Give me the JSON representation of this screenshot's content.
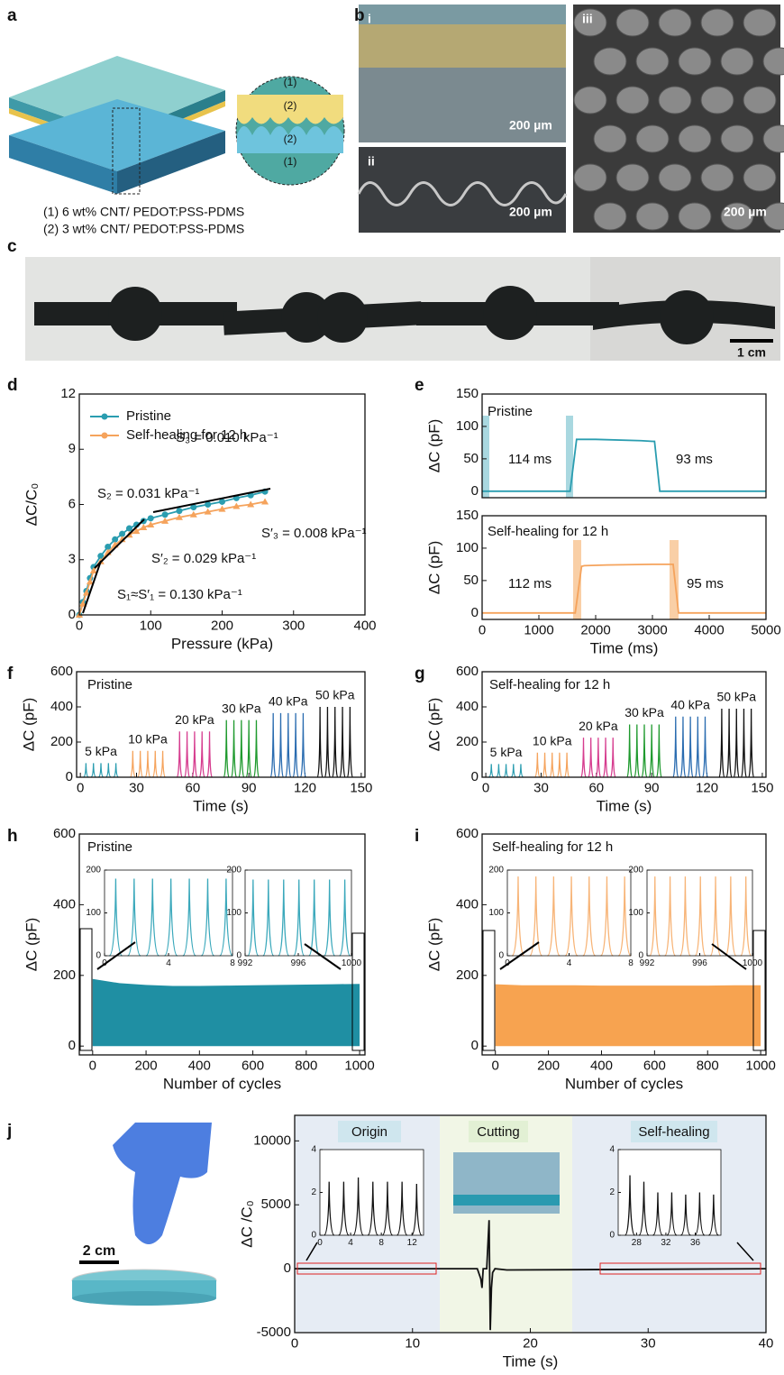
{
  "panel_labels": [
    "a",
    "b",
    "c",
    "d",
    "e",
    "f",
    "g",
    "h",
    "i",
    "j"
  ],
  "figure_a": {
    "layer_labels": [
      "(1)",
      "(2)",
      "(2)",
      "(1)"
    ],
    "legend": [
      "(1) 6 wt% CNT/ PEDOT:PSS-PDMS",
      "(2) 3 wt% CNT/ PEDOT:PSS-PDMS"
    ]
  },
  "figure_b": {
    "subpanels": [
      "i",
      "ii",
      "iii"
    ],
    "scale_bars": [
      "200 µm",
      "200 µm",
      "200 µm"
    ]
  },
  "figure_c": {
    "scale_bar": "1 cm"
  },
  "figure_j": {
    "scale_bar": "2 cm"
  },
  "chart_data": [
    {
      "type": "line",
      "xlabel": "Pressure (kPa)",
      "ylabel": "ΔC/C₀",
      "xlim": [
        0,
        400
      ],
      "xticks": [
        0,
        100,
        200,
        300,
        400
      ],
      "ylim": [
        0,
        12
      ],
      "yticks": [
        0,
        3,
        6,
        9,
        12
      ],
      "x": [
        0,
        5,
        10,
        15,
        20,
        30,
        40,
        50,
        60,
        70,
        80,
        90,
        100,
        120,
        140,
        160,
        180,
        200,
        220,
        240,
        260
      ],
      "series": [
        {
          "name": "Pristine",
          "color": "#2a9db0",
          "marker": "circle",
          "values": [
            0,
            0.7,
            1.3,
            2.0,
            2.6,
            3.2,
            3.7,
            4.1,
            4.4,
            4.7,
            4.9,
            5.1,
            5.25,
            5.45,
            5.65,
            5.85,
            6.0,
            6.15,
            6.35,
            6.5,
            6.7
          ]
        },
        {
          "name": "Self-healing for 12 h",
          "color": "#f5a35c",
          "marker": "triangle",
          "values": [
            0,
            0.6,
            1.2,
            1.8,
            2.4,
            2.9,
            3.4,
            3.8,
            4.1,
            4.35,
            4.55,
            4.75,
            4.9,
            5.1,
            5.3,
            5.45,
            5.6,
            5.75,
            5.9,
            6.0,
            6.15
          ]
        }
      ],
      "annotations": [
        "S₃ = 0.010 kPa⁻¹",
        "S₂ = 0.031 kPa⁻¹",
        "S′₃ = 0.008 kPa⁻¹",
        "S′₂ = 0.029 kPa⁻¹",
        "S₁≈S′₁ = 0.130 kPa⁻¹"
      ]
    },
    {
      "type": "line",
      "ylabel": "ΔC (pF)",
      "xlim": [
        0,
        5000
      ],
      "ylim": [
        -10,
        150
      ],
      "yticks": [
        0,
        50,
        100,
        150
      ],
      "x": [
        0,
        1550,
        1664,
        1700,
        2000,
        2800,
        3000,
        3037,
        3130,
        5000
      ],
      "series": [
        {
          "color": "#2a9db0",
          "values": [
            0,
            0,
            80,
            80,
            80,
            78,
            77,
            77,
            0,
            0
          ]
        }
      ],
      "annotations": [
        "Pristine",
        "114 ms",
        "93 ms"
      ]
    },
    {
      "type": "line",
      "xlabel": "Time (ms)",
      "ylabel": "ΔC (pF)",
      "xlim": [
        0,
        5000
      ],
      "xticks": [
        0,
        1000,
        2000,
        3000,
        4000,
        5000
      ],
      "ylim": [
        -10,
        150
      ],
      "yticks": [
        0,
        50,
        100,
        150
      ],
      "x": [
        0,
        1640,
        1752,
        1800,
        2200,
        3000,
        3300,
        3365,
        3460,
        5000
      ],
      "series": [
        {
          "color": "#f5a35c",
          "values": [
            0,
            0,
            72,
            73,
            74,
            75,
            75,
            75,
            0,
            0
          ]
        }
      ],
      "annotations": [
        "Self-healing for 12 h",
        "112 ms",
        "95 ms"
      ]
    },
    {
      "type": "spike",
      "xlabel": "Time (s)",
      "ylabel": "ΔC (pF)",
      "xlim": [
        -2,
        152
      ],
      "xticks": [
        0,
        30,
        60,
        90,
        120,
        150
      ],
      "ylim": [
        0,
        600
      ],
      "yticks": [
        0,
        200,
        400,
        600
      ],
      "series": [
        {
          "name": "5 kPa",
          "color": "#2a9db0",
          "x": [
            3,
            7,
            11,
            15,
            19
          ],
          "values": [
            80,
            80,
            80,
            80,
            80
          ]
        },
        {
          "name": "10 kPa",
          "color": "#f5a35c",
          "x": [
            28,
            32,
            36,
            40,
            44
          ],
          "values": [
            150,
            150,
            150,
            150,
            150
          ]
        },
        {
          "name": "20 kPa",
          "color": "#d63d8f",
          "x": [
            53,
            57,
            61,
            65,
            69
          ],
          "values": [
            260,
            260,
            260,
            260,
            260
          ]
        },
        {
          "name": "30 kPa",
          "color": "#1f9a2e",
          "x": [
            78,
            82,
            86,
            90,
            94
          ],
          "values": [
            325,
            325,
            325,
            325,
            325
          ]
        },
        {
          "name": "40 kPa",
          "color": "#2a6cb0",
          "x": [
            103,
            107,
            111,
            115,
            119
          ],
          "values": [
            365,
            365,
            365,
            365,
            365
          ]
        },
        {
          "name": "50 kPa",
          "color": "#111111",
          "x": [
            128,
            132,
            136,
            140,
            144
          ],
          "values": [
            400,
            400,
            400,
            400,
            400
          ]
        }
      ],
      "annotations": [
        "Pristine"
      ]
    },
    {
      "type": "spike",
      "xlabel": "Time (s)",
      "ylabel": "ΔC (pF)",
      "xlim": [
        -2,
        152
      ],
      "xticks": [
        0,
        30,
        60,
        90,
        120,
        150
      ],
      "ylim": [
        0,
        600
      ],
      "yticks": [
        0,
        200,
        400,
        600
      ],
      "series": [
        {
          "name": "5 kPa",
          "color": "#2a9db0",
          "x": [
            3,
            7,
            11,
            15,
            19
          ],
          "values": [
            75,
            75,
            75,
            75,
            75
          ]
        },
        {
          "name": "10 kPa",
          "color": "#f5a35c",
          "x": [
            28,
            32,
            36,
            40,
            44
          ],
          "values": [
            140,
            140,
            140,
            140,
            140
          ]
        },
        {
          "name": "20 kPa",
          "color": "#d63d8f",
          "x": [
            53,
            57,
            61,
            65,
            69
          ],
          "values": [
            225,
            225,
            225,
            225,
            225
          ]
        },
        {
          "name": "30 kPa",
          "color": "#1f9a2e",
          "x": [
            78,
            82,
            86,
            90,
            94
          ],
          "values": [
            300,
            300,
            300,
            300,
            300
          ]
        },
        {
          "name": "40 kPa",
          "color": "#2a6cb0",
          "x": [
            103,
            107,
            111,
            115,
            119
          ],
          "values": [
            345,
            345,
            345,
            345,
            345
          ]
        },
        {
          "name": "50 kPa",
          "color": "#111111",
          "x": [
            128,
            132,
            136,
            140,
            144
          ],
          "values": [
            390,
            390,
            390,
            390,
            390
          ]
        }
      ],
      "annotations": [
        "Self-healing for 12 h"
      ]
    },
    {
      "type": "area",
      "xlabel": "Number of cycles",
      "ylabel": "ΔC (pF)",
      "xlim": [
        -50,
        1020
      ],
      "xticks": [
        0,
        200,
        400,
        600,
        800,
        1000
      ],
      "ylim": [
        -25,
        600
      ],
      "yticks": [
        0,
        200,
        400,
        600
      ],
      "x": [
        0,
        100,
        200,
        300,
        400,
        500,
        600,
        700,
        800,
        900,
        1000
      ],
      "series": [
        {
          "color": "#1f8fa3",
          "values": [
            190,
            178,
            173,
            170,
            170,
            171,
            172,
            173,
            174,
            175,
            176
          ]
        }
      ],
      "annotations": [
        "Pristine"
      ]
    },
    {
      "type": "spike",
      "xlim": [
        0,
        8
      ],
      "xticks": [
        0,
        4,
        8
      ],
      "ylim": [
        0,
        200
      ],
      "yticks": [
        0,
        100,
        200
      ],
      "series": [
        {
          "color": "#3aa8bb",
          "x": [
            0.7,
            1.85,
            3.0,
            4.15,
            5.3,
            6.45,
            7.6
          ],
          "values": [
            180,
            180,
            180,
            180,
            180,
            180,
            180
          ]
        }
      ]
    },
    {
      "type": "spike",
      "xlim": [
        992,
        1000
      ],
      "xticks": [
        992,
        996,
        1000
      ],
      "ylim": [
        0,
        200
      ],
      "yticks": [
        0,
        100,
        200
      ],
      "series": [
        {
          "color": "#3aa8bb",
          "x": [
            992.6,
            993.75,
            994.9,
            996.05,
            997.2,
            998.35,
            999.5
          ],
          "values": [
            178,
            178,
            178,
            178,
            178,
            178,
            178
          ]
        }
      ]
    },
    {
      "type": "area",
      "xlabel": "Number of cycles",
      "ylabel": "ΔC (pF)",
      "xlim": [
        -50,
        1020
      ],
      "xticks": [
        0,
        200,
        400,
        600,
        800,
        1000
      ],
      "ylim": [
        -25,
        600
      ],
      "yticks": [
        0,
        200,
        400,
        600
      ],
      "x": [
        0,
        100,
        200,
        300,
        400,
        500,
        600,
        700,
        800,
        900,
        1000
      ],
      "series": [
        {
          "color": "#f7a350",
          "values": [
            175,
            172,
            172,
            172,
            171,
            171,
            171,
            171,
            171,
            172,
            172
          ]
        }
      ],
      "annotations": [
        "Self-healing for 12 h"
      ]
    },
    {
      "type": "spike",
      "xlim": [
        0,
        8
      ],
      "xticks": [
        0,
        4,
        8
      ],
      "ylim": [
        0,
        200
      ],
      "yticks": [
        0,
        100,
        200
      ],
      "series": [
        {
          "color": "#f7b477",
          "x": [
            0.7,
            1.85,
            3.0,
            4.15,
            5.3,
            6.45,
            7.6
          ],
          "values": [
            185,
            185,
            185,
            185,
            185,
            185,
            185
          ]
        }
      ]
    },
    {
      "type": "spike",
      "xlim": [
        992,
        1000
      ],
      "xticks": [
        992,
        996,
        1000
      ],
      "ylim": [
        0,
        200
      ],
      "yticks": [
        0,
        100,
        200
      ],
      "series": [
        {
          "color": "#f7b477",
          "x": [
            992.6,
            993.75,
            994.9,
            996.05,
            997.2,
            998.35,
            999.5
          ],
          "values": [
            185,
            185,
            185,
            185,
            185,
            185,
            185
          ]
        }
      ]
    },
    {
      "type": "line",
      "xlabel": "Time (s)",
      "ylabel": "ΔC /C₀",
      "xlim": [
        0,
        40
      ],
      "xticks": [
        0,
        10,
        20,
        30,
        40
      ],
      "ylim": [
        -5000,
        12000
      ],
      "yticks": [
        -5000,
        0,
        5000,
        10000
      ],
      "x": [
        0,
        15.5,
        15.8,
        15.9,
        16.0,
        16.3,
        16.5,
        16.6,
        16.7,
        16.8,
        17.0,
        18.0,
        40
      ],
      "series": [
        {
          "color": "#111111",
          "values": [
            0,
            0,
            -800,
            -1500,
            0,
            0,
            3800,
            -4800,
            -1500,
            -300,
            0,
            -100,
            0
          ]
        }
      ],
      "annotations": [
        "Origin",
        "Cutting",
        "Self-healing"
      ]
    },
    {
      "type": "spike",
      "xlim": [
        0,
        13.5
      ],
      "xticks": [
        0,
        4,
        8,
        12
      ],
      "ylim": [
        0,
        4
      ],
      "yticks": [
        0,
        2,
        4
      ],
      "series": [
        {
          "color": "#111111",
          "x": [
            1.2,
            3.1,
            5.0,
            6.9,
            8.8,
            10.7,
            12.6
          ],
          "values": [
            2.5,
            2.5,
            2.7,
            2.5,
            2.5,
            2.5,
            2.4
          ]
        }
      ]
    },
    {
      "type": "spike",
      "xlim": [
        25.5,
        39.5
      ],
      "xticks": [
        28,
        32,
        36
      ],
      "ylim": [
        0,
        4
      ],
      "yticks": [
        0,
        2,
        4
      ],
      "series": [
        {
          "color": "#111111",
          "x": [
            27.1,
            29.0,
            30.9,
            32.8,
            34.7,
            36.6,
            38.5
          ],
          "values": [
            2.8,
            2.5,
            2.0,
            2.0,
            1.9,
            2.0,
            1.9
          ]
        }
      ]
    }
  ]
}
